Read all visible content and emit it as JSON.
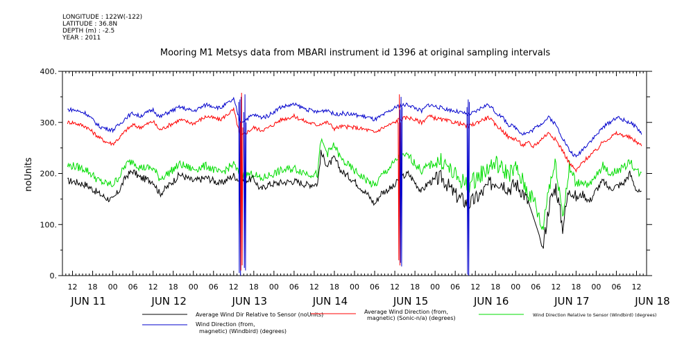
{
  "header": {
    "longitude": "LONGITUDE : 122W(-122)",
    "latitude": "LATITUDE : 36.8N",
    "depth": "DEPTH (m) : -2.5",
    "year": "YEAR : 2011"
  },
  "chart_data": {
    "type": "line",
    "title": "Mooring M1 Metsys data from MBARI instrument id 1396 at original sampling intervals",
    "ylabel": "noUnits",
    "xlabel": "",
    "ylim": [
      0,
      400
    ],
    "yticks": [
      0,
      100,
      200,
      300,
      400
    ],
    "ytick_labels": [
      "0.",
      "100.",
      "200.",
      "300.",
      "400."
    ],
    "xlim_hours": [
      -3,
      171
    ],
    "xticks_hours": [
      0,
      6,
      12,
      18,
      24,
      30,
      36,
      42,
      48,
      54,
      60,
      66,
      72,
      78,
      84,
      90,
      96,
      102,
      108,
      114,
      120,
      126,
      132,
      138,
      144,
      150,
      156,
      162,
      168
    ],
    "xtick_labels": [
      "12",
      "18",
      "00",
      "06",
      "12",
      "18",
      "00",
      "06",
      "12",
      "18",
      "00",
      "06",
      "12",
      "18",
      "00",
      "06",
      "12",
      "18",
      "00",
      "06",
      "12",
      "18",
      "00",
      "06",
      "12",
      "18",
      "00",
      "06",
      "12"
    ],
    "day_labels": [
      {
        "label": "JUN 11",
        "hour": 0
      },
      {
        "label": "JUN 12",
        "hour": 24
      },
      {
        "label": "JUN 13",
        "hour": 48
      },
      {
        "label": "JUN 14",
        "hour": 72
      },
      {
        "label": "JUN 15",
        "hour": 96
      },
      {
        "label": "JUN 16",
        "hour": 120
      },
      {
        "label": "JUN 17",
        "hour": 144
      },
      {
        "label": "JUN 18",
        "hour": 168
      }
    ],
    "x_unit": "hours since 2011-06-11 12:00",
    "series": [
      {
        "name": "Average Wind Dir Relative to Sensor (noUnits)",
        "color": "#000000",
        "x": [
          0,
          4,
          8,
          10,
          12,
          14,
          16,
          18,
          20,
          24,
          26,
          28,
          32,
          36,
          40,
          44,
          48,
          50,
          54,
          56,
          58,
          62,
          66,
          70,
          73,
          74,
          76,
          78,
          80,
          84,
          88,
          90,
          92,
          96,
          97,
          100,
          104,
          106,
          110,
          114,
          118,
          120,
          122,
          124,
          126,
          128,
          130,
          132,
          134,
          136,
          137,
          138,
          139,
          140,
          142,
          144,
          146,
          148,
          150,
          152,
          154,
          156,
          158,
          160,
          162,
          164,
          166,
          168,
          170
        ],
        "values": [
          185,
          178,
          160,
          152,
          148,
          168,
          195,
          205,
          192,
          185,
          160,
          172,
          198,
          185,
          192,
          180,
          196,
          185,
          190,
          168,
          178,
          182,
          185,
          178,
          180,
          240,
          215,
          230,
          205,
          185,
          158,
          140,
          162,
          175,
          188,
          200,
          165,
          182,
          192,
          158,
          140,
          150,
          162,
          178,
          185,
          182,
          170,
          180,
          165,
          140,
          120,
          100,
          80,
          50,
          140,
          175,
          95,
          175,
          150,
          160,
          145,
          168,
          185,
          170,
          175,
          180,
          200,
          168,
          155
        ]
      },
      {
        "name": "Average Wind Direction (from, magnetic) (Sonic-n/a) (degrees)",
        "color": "#ff0000",
        "x": [
          0,
          4,
          8,
          10,
          12,
          14,
          16,
          18,
          20,
          24,
          26,
          28,
          32,
          36,
          40,
          44,
          48,
          50,
          54,
          56,
          58,
          62,
          66,
          70,
          73,
          74,
          76,
          78,
          80,
          84,
          88,
          90,
          92,
          96,
          97,
          100,
          104,
          106,
          110,
          114,
          118,
          120,
          122,
          124,
          126,
          128,
          130,
          132,
          134,
          136,
          137,
          138,
          139,
          140,
          142,
          144,
          146,
          148,
          150,
          152,
          154,
          156,
          158,
          160,
          162,
          164,
          166,
          168,
          170
        ],
        "values": [
          300,
          292,
          270,
          262,
          258,
          270,
          285,
          295,
          290,
          302,
          285,
          292,
          305,
          298,
          312,
          305,
          325,
          272,
          290,
          285,
          288,
          305,
          312,
          300,
          295,
          298,
          300,
          288,
          292,
          290,
          285,
          280,
          288,
          300,
          305,
          310,
          300,
          312,
          305,
          300,
          292,
          298,
          305,
          310,
          295,
          285,
          270,
          268,
          255,
          260,
          252,
          258,
          262,
          270,
          280,
          265,
          245,
          220,
          205,
          222,
          235,
          245,
          262,
          270,
          278,
          275,
          270,
          262,
          252
        ]
      },
      {
        "name": "Wind Direction Relative to Sensor (Windbird) (degrees)",
        "color": "#00dd00",
        "x": [
          0,
          4,
          8,
          10,
          12,
          14,
          16,
          18,
          20,
          24,
          26,
          28,
          32,
          36,
          40,
          44,
          48,
          50,
          54,
          56,
          58,
          62,
          66,
          70,
          73,
          74,
          76,
          78,
          80,
          84,
          88,
          90,
          92,
          96,
          97,
          100,
          104,
          106,
          110,
          114,
          118,
          120,
          122,
          124,
          126,
          128,
          130,
          132,
          134,
          136,
          137,
          138,
          139,
          140,
          142,
          144,
          146,
          148,
          150,
          152,
          154,
          156,
          158,
          160,
          162,
          164,
          166,
          168,
          170
        ],
        "values": [
          215,
          208,
          185,
          180,
          178,
          195,
          218,
          225,
          212,
          210,
          190,
          198,
          218,
          208,
          215,
          200,
          218,
          195,
          200,
          188,
          195,
          205,
          210,
          200,
          198,
          265,
          240,
          255,
          228,
          205,
          185,
          175,
          195,
          222,
          230,
          235,
          205,
          215,
          225,
          195,
          175,
          190,
          200,
          212,
          220,
          208,
          200,
          210,
          185,
          160,
          150,
          140,
          110,
          90,
          180,
          220,
          120,
          210,
          180,
          185,
          175,
          195,
          215,
          200,
          205,
          210,
          225,
          205,
          195
        ]
      },
      {
        "name": "Wind Direction (from, magnetic) (Windbird) (degrees)",
        "color": "#0000cc",
        "x": [
          0,
          4,
          8,
          10,
          12,
          14,
          16,
          18,
          20,
          24,
          26,
          28,
          32,
          36,
          40,
          44,
          48,
          50,
          54,
          56,
          58,
          62,
          66,
          70,
          73,
          74,
          76,
          78,
          80,
          84,
          88,
          90,
          92,
          96,
          97,
          100,
          104,
          106,
          110,
          114,
          118,
          120,
          122,
          124,
          126,
          128,
          130,
          132,
          134,
          136,
          137,
          138,
          139,
          140,
          142,
          144,
          146,
          148,
          150,
          152,
          154,
          156,
          158,
          160,
          162,
          164,
          166,
          168,
          170
        ],
        "values": [
          325,
          318,
          292,
          288,
          285,
          296,
          310,
          318,
          312,
          325,
          310,
          318,
          330,
          322,
          335,
          328,
          345,
          300,
          315,
          310,
          312,
          330,
          335,
          325,
          320,
          322,
          325,
          315,
          318,
          315,
          310,
          305,
          312,
          328,
          332,
          335,
          322,
          335,
          328,
          322,
          315,
          320,
          330,
          335,
          320,
          310,
          295,
          290,
          278,
          280,
          285,
          290,
          295,
          300,
          310,
          295,
          270,
          245,
          232,
          248,
          262,
          275,
          290,
          300,
          310,
          305,
          300,
          290,
          275
        ]
      }
    ],
    "spikes": [
      {
        "series": 3,
        "hour": 49.5,
        "values": [
          340,
          5,
          345,
          0,
          350
        ]
      },
      {
        "series": 1,
        "hour": 50.0,
        "values": [
          300,
          10,
          358,
          20,
          290
        ]
      },
      {
        "series": 3,
        "hour": 51.0,
        "values": [
          320,
          15,
          355,
          10,
          300
        ]
      },
      {
        "series": 1,
        "hour": 97.0,
        "values": [
          300,
          30,
          355,
          20,
          300
        ]
      },
      {
        "series": 3,
        "hour": 97.5,
        "values": [
          325,
          25,
          350,
          18,
          330
        ]
      },
      {
        "series": 3,
        "hour": 117.5,
        "values": [
          330,
          2,
          345,
          0,
          340
        ]
      }
    ],
    "legend": [
      {
        "label": "Average Wind Dir Relative to Sensor (noUnits)",
        "color": "#000000"
      },
      {
        "label_line1": "Average Wind Direction (from,",
        "label_line2": "magnetic) (Sonic-n/a) (degrees)",
        "color": "#ff0000"
      },
      {
        "label": "Wind Direction Relative to Sensor (Windbird) (degrees)",
        "color": "#00dd00"
      },
      {
        "label_line1": "Wind Direction (from,",
        "label_line2": "magnetic) (Windbird) (degrees)",
        "color": "#0000cc"
      }
    ]
  }
}
